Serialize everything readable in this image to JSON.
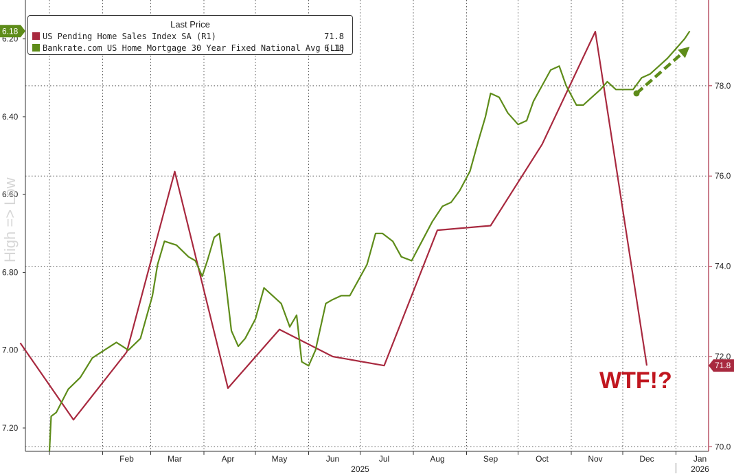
{
  "chart_data": {
    "type": "line",
    "legend": {
      "title": "Last Price",
      "entries": [
        {
          "name": "US Pending Home Sales Index SA  (R1)",
          "value": "71.8",
          "color": "#a8293f"
        },
        {
          "name": "Bankrate.com US Home Mortgage 30 Year Fixed National Avg  (L1)",
          "value": "6.18",
          "color": "#5e8c1a"
        }
      ]
    },
    "side_label": "High => Low",
    "annotation": "WTF!?",
    "x_axis": {
      "months": [
        "Feb",
        "Mar",
        "Apr",
        "May",
        "Jun",
        "Jul",
        "Aug",
        "Sep",
        "Oct",
        "Nov",
        "Dec",
        "Jan"
      ],
      "years": [
        "2025",
        "2026"
      ]
    },
    "left_axis": {
      "inverted": true,
      "range": [
        6.1,
        7.26
      ],
      "ticks": [
        "6.20",
        "6.40",
        "6.60",
        "6.80",
        "7.00",
        "7.20"
      ],
      "last_value_tag": "6.18"
    },
    "right_axis": {
      "range": [
        69.9,
        79.9
      ],
      "ticks": [
        "70.0",
        "72.0",
        "74.0",
        "76.0",
        "78.0"
      ],
      "last_value_tag": "71.8"
    },
    "series": [
      {
        "name": "US Pending Home Sales Index SA  (R1)",
        "axis": "right",
        "color": "#a8293f",
        "points": [
          [
            "2024-12",
            72.3
          ],
          [
            "2025-01",
            70.6
          ],
          [
            "2025-02",
            72.1
          ],
          [
            "2025-03",
            76.1
          ],
          [
            "2025-04",
            71.3
          ],
          [
            "2025-05",
            72.6
          ],
          [
            "2025-06",
            72.0
          ],
          [
            "2025-07",
            71.8
          ],
          [
            "2025-08",
            74.8
          ],
          [
            "2025-09",
            74.9
          ],
          [
            "2025-10",
            76.7
          ],
          [
            "2025-11",
            79.2
          ],
          [
            "2025-12",
            71.8
          ]
        ]
      },
      {
        "name": "Bankrate.com US Home Mortgage 30 Year Fixed National Avg  (L1)",
        "axis": "left",
        "color": "#5e8c1a",
        "points": [
          [
            "2025-01-01",
            7.26
          ],
          [
            "2025-01-02",
            7.17
          ],
          [
            "2025-01-05",
            7.16
          ],
          [
            "2025-01-12",
            7.1
          ],
          [
            "2025-01-19",
            7.07
          ],
          [
            "2025-01-26",
            7.02
          ],
          [
            "2025-02-02",
            7.0
          ],
          [
            "2025-02-09",
            6.98
          ],
          [
            "2025-02-16",
            7.0
          ],
          [
            "2025-02-23",
            6.97
          ],
          [
            "2025-03-02",
            6.86
          ],
          [
            "2025-03-05",
            6.78
          ],
          [
            "2025-03-09",
            6.72
          ],
          [
            "2025-03-16",
            6.73
          ],
          [
            "2025-03-23",
            6.76
          ],
          [
            "2025-03-27",
            6.77
          ],
          [
            "2025-03-31",
            6.81
          ],
          [
            "2025-04-03",
            6.77
          ],
          [
            "2025-04-07",
            6.71
          ],
          [
            "2025-04-10",
            6.7
          ],
          [
            "2025-04-13",
            6.8
          ],
          [
            "2025-04-17",
            6.95
          ],
          [
            "2025-04-21",
            6.99
          ],
          [
            "2025-04-25",
            6.97
          ],
          [
            "2025-05-01",
            6.92
          ],
          [
            "2025-05-06",
            6.84
          ],
          [
            "2025-05-11",
            6.86
          ],
          [
            "2025-05-16",
            6.88
          ],
          [
            "2025-05-21",
            6.94
          ],
          [
            "2025-05-25",
            6.91
          ],
          [
            "2025-05-28",
            7.03
          ],
          [
            "2025-06-01",
            7.04
          ],
          [
            "2025-06-05",
            7.0
          ],
          [
            "2025-06-08",
            6.94
          ],
          [
            "2025-06-11",
            6.88
          ],
          [
            "2025-06-15",
            6.87
          ],
          [
            "2025-06-20",
            6.86
          ],
          [
            "2025-06-25",
            6.86
          ],
          [
            "2025-06-30",
            6.82
          ],
          [
            "2025-07-05",
            6.78
          ],
          [
            "2025-07-10",
            6.7
          ],
          [
            "2025-07-14",
            6.7
          ],
          [
            "2025-07-20",
            6.72
          ],
          [
            "2025-07-25",
            6.76
          ],
          [
            "2025-07-31",
            6.77
          ],
          [
            "2025-08-06",
            6.72
          ],
          [
            "2025-08-12",
            6.67
          ],
          [
            "2025-08-18",
            6.63
          ],
          [
            "2025-08-23",
            6.62
          ],
          [
            "2025-08-28",
            6.59
          ],
          [
            "2025-09-03",
            6.54
          ],
          [
            "2025-09-08",
            6.46
          ],
          [
            "2025-09-12",
            6.4
          ],
          [
            "2025-09-15",
            6.34
          ],
          [
            "2025-09-20",
            6.35
          ],
          [
            "2025-09-25",
            6.39
          ],
          [
            "2025-10-01",
            6.42
          ],
          [
            "2025-10-06",
            6.41
          ],
          [
            "2025-10-10",
            6.36
          ],
          [
            "2025-10-15",
            6.32
          ],
          [
            "2025-10-20",
            6.28
          ],
          [
            "2025-10-25",
            6.27
          ],
          [
            "2025-10-29",
            6.32
          ],
          [
            "2025-11-04",
            6.37
          ],
          [
            "2025-11-08",
            6.37
          ],
          [
            "2025-11-13",
            6.35
          ],
          [
            "2025-11-18",
            6.33
          ],
          [
            "2025-11-22",
            6.31
          ],
          [
            "2025-11-27",
            6.33
          ],
          [
            "2025-12-02",
            6.33
          ],
          [
            "2025-12-07",
            6.33
          ],
          [
            "2025-12-12",
            6.3
          ],
          [
            "2025-12-17",
            6.29
          ],
          [
            "2025-12-22",
            6.27
          ],
          [
            "2025-12-27",
            6.25
          ],
          [
            "2026-01-02",
            6.22
          ],
          [
            "2026-01-06",
            6.2
          ],
          [
            "2026-01-09",
            6.18
          ]
        ]
      }
    ],
    "trend_arrow": {
      "color": "#5e8c1a",
      "from": [
        "2025-12-09",
        6.34
      ],
      "to": [
        "2026-01-09",
        6.22
      ]
    },
    "grid": true
  }
}
